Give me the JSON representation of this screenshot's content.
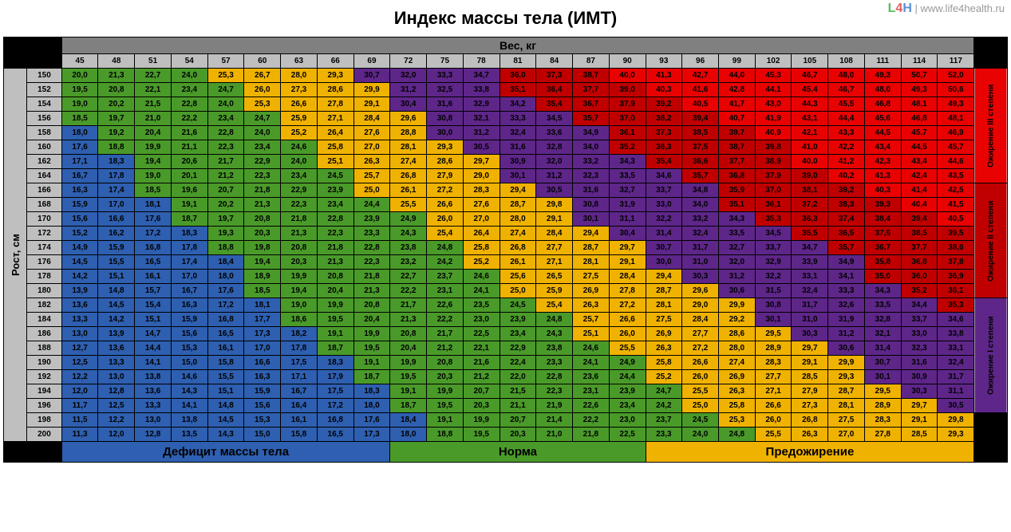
{
  "title": "Индекс массы тела (ИМТ)",
  "watermark": {
    "brand_l": "L",
    "brand_4": "4",
    "brand_h": "H",
    "sep": " | ",
    "url": "www.life4health.ru"
  },
  "axes": {
    "x": "Вес, кг",
    "y": "Рост, см"
  },
  "weights": [
    45,
    48,
    51,
    54,
    57,
    60,
    63,
    66,
    69,
    72,
    75,
    78,
    81,
    84,
    87,
    90,
    93,
    96,
    99,
    102,
    105,
    108,
    111,
    114,
    117
  ],
  "heights": [
    150,
    152,
    154,
    156,
    158,
    160,
    162,
    164,
    166,
    168,
    170,
    172,
    174,
    176,
    178,
    180,
    182,
    184,
    186,
    188,
    190,
    192,
    194,
    196,
    198,
    200
  ],
  "side_labels": [
    {
      "text": "Ожирение III степени",
      "class": "cat1",
      "rows": 8
    },
    {
      "text": "Ожирение II степени",
      "class": "cat2",
      "rows": 8
    },
    {
      "text": "Ожирение I степени",
      "class": "cat3",
      "rows": 8
    }
  ],
  "legend": [
    {
      "text": "Дефицит массы тела",
      "class": "cat6",
      "cols": 9
    },
    {
      "text": "Норма",
      "class": "cat5",
      "cols": 7
    },
    {
      "text": "Предожирение",
      "class": "cat4",
      "cols": 9
    }
  ],
  "grid": [
    [
      "20,0",
      "21,3",
      "22,7",
      "24,0",
      "25,3",
      "26,7",
      "28,0",
      "29,3",
      "30,7",
      "32,0",
      "33,3",
      "34,7",
      "36,0",
      "37,3",
      "38,7",
      "40,0",
      "41,3",
      "42,7",
      "44,0",
      "45,3",
      "46,7",
      "48,0",
      "49,3",
      "50,7",
      "52,0"
    ],
    [
      "19,5",
      "20,8",
      "22,1",
      "23,4",
      "24,7",
      "26,0",
      "27,3",
      "28,6",
      "29,9",
      "31,2",
      "32,5",
      "33,8",
      "35,1",
      "36,4",
      "37,7",
      "39,0",
      "40,3",
      "41,6",
      "42,8",
      "44,1",
      "45,4",
      "46,7",
      "48,0",
      "49,3",
      "50,6"
    ],
    [
      "19,0",
      "20,2",
      "21,5",
      "22,8",
      "24,0",
      "25,3",
      "26,6",
      "27,8",
      "29,1",
      "30,4",
      "31,6",
      "32,9",
      "34,2",
      "35,4",
      "36,7",
      "37,9",
      "39,2",
      "40,5",
      "41,7",
      "43,0",
      "44,3",
      "45,5",
      "46,8",
      "48,1",
      "49,3"
    ],
    [
      "18,5",
      "19,7",
      "21,0",
      "22,2",
      "23,4",
      "24,7",
      "25,9",
      "27,1",
      "28,4",
      "29,6",
      "30,8",
      "32,1",
      "33,3",
      "34,5",
      "35,7",
      "37,0",
      "38,2",
      "39,4",
      "40,7",
      "41,9",
      "43,1",
      "44,4",
      "45,6",
      "46,8",
      "48,1"
    ],
    [
      "18,0",
      "19,2",
      "20,4",
      "21,6",
      "22,8",
      "24,0",
      "25,2",
      "26,4",
      "27,6",
      "28,8",
      "30,0",
      "31,2",
      "32,4",
      "33,6",
      "34,9",
      "36,1",
      "37,3",
      "38,5",
      "39,7",
      "40,9",
      "42,1",
      "43,3",
      "44,5",
      "45,7",
      "46,9"
    ],
    [
      "17,6",
      "18,8",
      "19,9",
      "21,1",
      "22,3",
      "23,4",
      "24,6",
      "25,8",
      "27,0",
      "28,1",
      "29,3",
      "30,5",
      "31,6",
      "32,8",
      "34,0",
      "35,2",
      "36,3",
      "37,5",
      "38,7",
      "39,8",
      "41,0",
      "42,2",
      "43,4",
      "44,5",
      "45,7"
    ],
    [
      "17,1",
      "18,3",
      "19,4",
      "20,6",
      "21,7",
      "22,9",
      "24,0",
      "25,1",
      "26,3",
      "27,4",
      "28,6",
      "29,7",
      "30,9",
      "32,0",
      "33,2",
      "34,3",
      "35,4",
      "36,6",
      "37,7",
      "38,9",
      "40,0",
      "41,2",
      "42,3",
      "43,4",
      "44,6"
    ],
    [
      "16,7",
      "17,8",
      "19,0",
      "20,1",
      "21,2",
      "22,3",
      "23,4",
      "24,5",
      "25,7",
      "26,8",
      "27,9",
      "29,0",
      "30,1",
      "31,2",
      "32,3",
      "33,5",
      "34,6",
      "35,7",
      "36,8",
      "37,9",
      "39,0",
      "40,2",
      "41,3",
      "42,4",
      "43,5"
    ],
    [
      "16,3",
      "17,4",
      "18,5",
      "19,6",
      "20,7",
      "21,8",
      "22,9",
      "23,9",
      "25,0",
      "26,1",
      "27,2",
      "28,3",
      "29,4",
      "30,5",
      "31,6",
      "32,7",
      "33,7",
      "34,8",
      "35,9",
      "37,0",
      "38,1",
      "39,2",
      "40,3",
      "41,4",
      "42,5"
    ],
    [
      "15,9",
      "17,0",
      "18,1",
      "19,1",
      "20,2",
      "21,3",
      "22,3",
      "23,4",
      "24,4",
      "25,5",
      "26,6",
      "27,6",
      "28,7",
      "29,8",
      "30,8",
      "31,9",
      "33,0",
      "34,0",
      "35,1",
      "36,1",
      "37,2",
      "38,3",
      "39,3",
      "40,4",
      "41,5"
    ],
    [
      "15,6",
      "16,6",
      "17,6",
      "18,7",
      "19,7",
      "20,8",
      "21,8",
      "22,8",
      "23,9",
      "24,9",
      "26,0",
      "27,0",
      "28,0",
      "29,1",
      "30,1",
      "31,1",
      "32,2",
      "33,2",
      "34,3",
      "35,3",
      "36,3",
      "37,4",
      "38,4",
      "39,4",
      "40,5"
    ],
    [
      "15,2",
      "16,2",
      "17,2",
      "18,3",
      "19,3",
      "20,3",
      "21,3",
      "22,3",
      "23,3",
      "24,3",
      "25,4",
      "26,4",
      "27,4",
      "28,4",
      "29,4",
      "30,4",
      "31,4",
      "32,4",
      "33,5",
      "34,5",
      "35,5",
      "36,5",
      "37,5",
      "38,5",
      "39,5"
    ],
    [
      "14,9",
      "15,9",
      "16,8",
      "17,8",
      "18,8",
      "19,8",
      "20,8",
      "21,8",
      "22,8",
      "23,8",
      "24,8",
      "25,8",
      "26,8",
      "27,7",
      "28,7",
      "29,7",
      "30,7",
      "31,7",
      "32,7",
      "33,7",
      "34,7",
      "35,7",
      "36,7",
      "37,7",
      "38,6"
    ],
    [
      "14,5",
      "15,5",
      "16,5",
      "17,4",
      "18,4",
      "19,4",
      "20,3",
      "21,3",
      "22,3",
      "23,2",
      "24,2",
      "25,2",
      "26,1",
      "27,1",
      "28,1",
      "29,1",
      "30,0",
      "31,0",
      "32,0",
      "32,9",
      "33,9",
      "34,9",
      "35,8",
      "36,8",
      "37,8"
    ],
    [
      "14,2",
      "15,1",
      "16,1",
      "17,0",
      "18,0",
      "18,9",
      "19,9",
      "20,8",
      "21,8",
      "22,7",
      "23,7",
      "24,6",
      "25,6",
      "26,5",
      "27,5",
      "28,4",
      "29,4",
      "30,3",
      "31,2",
      "32,2",
      "33,1",
      "34,1",
      "35,0",
      "36,0",
      "36,9"
    ],
    [
      "13,9",
      "14,8",
      "15,7",
      "16,7",
      "17,6",
      "18,5",
      "19,4",
      "20,4",
      "21,3",
      "22,2",
      "23,1",
      "24,1",
      "25,0",
      "25,9",
      "26,9",
      "27,8",
      "28,7",
      "29,6",
      "30,6",
      "31,5",
      "32,4",
      "33,3",
      "34,3",
      "35,2",
      "36,1"
    ],
    [
      "13,6",
      "14,5",
      "15,4",
      "16,3",
      "17,2",
      "18,1",
      "19,0",
      "19,9",
      "20,8",
      "21,7",
      "22,6",
      "23,5",
      "24,5",
      "25,4",
      "26,3",
      "27,2",
      "28,1",
      "29,0",
      "29,9",
      "30,8",
      "31,7",
      "32,6",
      "33,5",
      "34,4",
      "35,3"
    ],
    [
      "13,3",
      "14,2",
      "15,1",
      "15,9",
      "16,8",
      "17,7",
      "18,6",
      "19,5",
      "20,4",
      "21,3",
      "22,2",
      "23,0",
      "23,9",
      "24,8",
      "25,7",
      "26,6",
      "27,5",
      "28,4",
      "29,2",
      "30,1",
      "31,0",
      "31,9",
      "32,8",
      "33,7",
      "34,6"
    ],
    [
      "13,0",
      "13,9",
      "14,7",
      "15,6",
      "16,5",
      "17,3",
      "18,2",
      "19,1",
      "19,9",
      "20,8",
      "21,7",
      "22,5",
      "23,4",
      "24,3",
      "25,1",
      "26,0",
      "26,9",
      "27,7",
      "28,6",
      "29,5",
      "30,3",
      "31,2",
      "32,1",
      "33,0",
      "33,8"
    ],
    [
      "12,7",
      "13,6",
      "14,4",
      "15,3",
      "16,1",
      "17,0",
      "17,8",
      "18,7",
      "19,5",
      "20,4",
      "21,2",
      "22,1",
      "22,9",
      "23,8",
      "24,6",
      "25,5",
      "26,3",
      "27,2",
      "28,0",
      "28,9",
      "29,7",
      "30,6",
      "31,4",
      "32,3",
      "33,1"
    ],
    [
      "12,5",
      "13,3",
      "14,1",
      "15,0",
      "15,8",
      "16,6",
      "17,5",
      "18,3",
      "19,1",
      "19,9",
      "20,8",
      "21,6",
      "22,4",
      "23,3",
      "24,1",
      "24,9",
      "25,8",
      "26,6",
      "27,4",
      "28,3",
      "29,1",
      "29,9",
      "30,7",
      "31,6",
      "32,4"
    ],
    [
      "12,2",
      "13,0",
      "13,8",
      "14,6",
      "15,5",
      "16,3",
      "17,1",
      "17,9",
      "18,7",
      "19,5",
      "20,3",
      "21,2",
      "22,0",
      "22,8",
      "23,6",
      "24,4",
      "25,2",
      "26,0",
      "26,9",
      "27,7",
      "28,5",
      "29,3",
      "30,1",
      "30,9",
      "31,7"
    ],
    [
      "12,0",
      "12,8",
      "13,6",
      "14,3",
      "15,1",
      "15,9",
      "16,7",
      "17,5",
      "18,3",
      "19,1",
      "19,9",
      "20,7",
      "21,5",
      "22,3",
      "23,1",
      "23,9",
      "24,7",
      "25,5",
      "26,3",
      "27,1",
      "27,9",
      "28,7",
      "29,5",
      "30,3",
      "31,1"
    ],
    [
      "11,7",
      "12,5",
      "13,3",
      "14,1",
      "14,8",
      "15,6",
      "16,4",
      "17,2",
      "18,0",
      "18,7",
      "19,5",
      "20,3",
      "21,1",
      "21,9",
      "22,6",
      "23,4",
      "24,2",
      "25,0",
      "25,8",
      "26,6",
      "27,3",
      "28,1",
      "28,9",
      "29,7",
      "30,5"
    ],
    [
      "11,5",
      "12,2",
      "13,0",
      "13,8",
      "14,5",
      "15,3",
      "16,1",
      "16,8",
      "17,6",
      "18,4",
      "19,1",
      "19,9",
      "20,7",
      "21,4",
      "22,2",
      "23,0",
      "23,7",
      "24,5",
      "25,3",
      "26,0",
      "26,8",
      "27,5",
      "28,3",
      "29,1",
      "29,8"
    ],
    [
      "11,3",
      "12,0",
      "12,8",
      "13,5",
      "14,3",
      "15,0",
      "15,8",
      "16,5",
      "17,3",
      "18,0",
      "18,8",
      "19,5",
      "20,3",
      "21,0",
      "21,8",
      "22,5",
      "23,3",
      "24,0",
      "24,8",
      "25,5",
      "26,3",
      "27,0",
      "27,8",
      "28,5",
      "29,3"
    ]
  ],
  "thresholds": {
    "t1": 18.5,
    "t2": 25.0,
    "t3": 30.0,
    "t4": 35.0,
    "t5": 40.0
  },
  "colors": {
    "cat1": "#e80202",
    "cat2": "#c00000",
    "cat3": "#5e2689",
    "cat4": "#f0b200",
    "cat5": "#4a9a2a",
    "cat6": "#2e5fb0",
    "black": "#000000",
    "grey_dark": "#808080",
    "grey_light": "#bfbfbf",
    "white": "#ffffff"
  },
  "typography": {
    "title_pt": 22,
    "axis_pt": 14,
    "cell_pt": 10,
    "legend_pt": 15,
    "family": "Arial"
  }
}
